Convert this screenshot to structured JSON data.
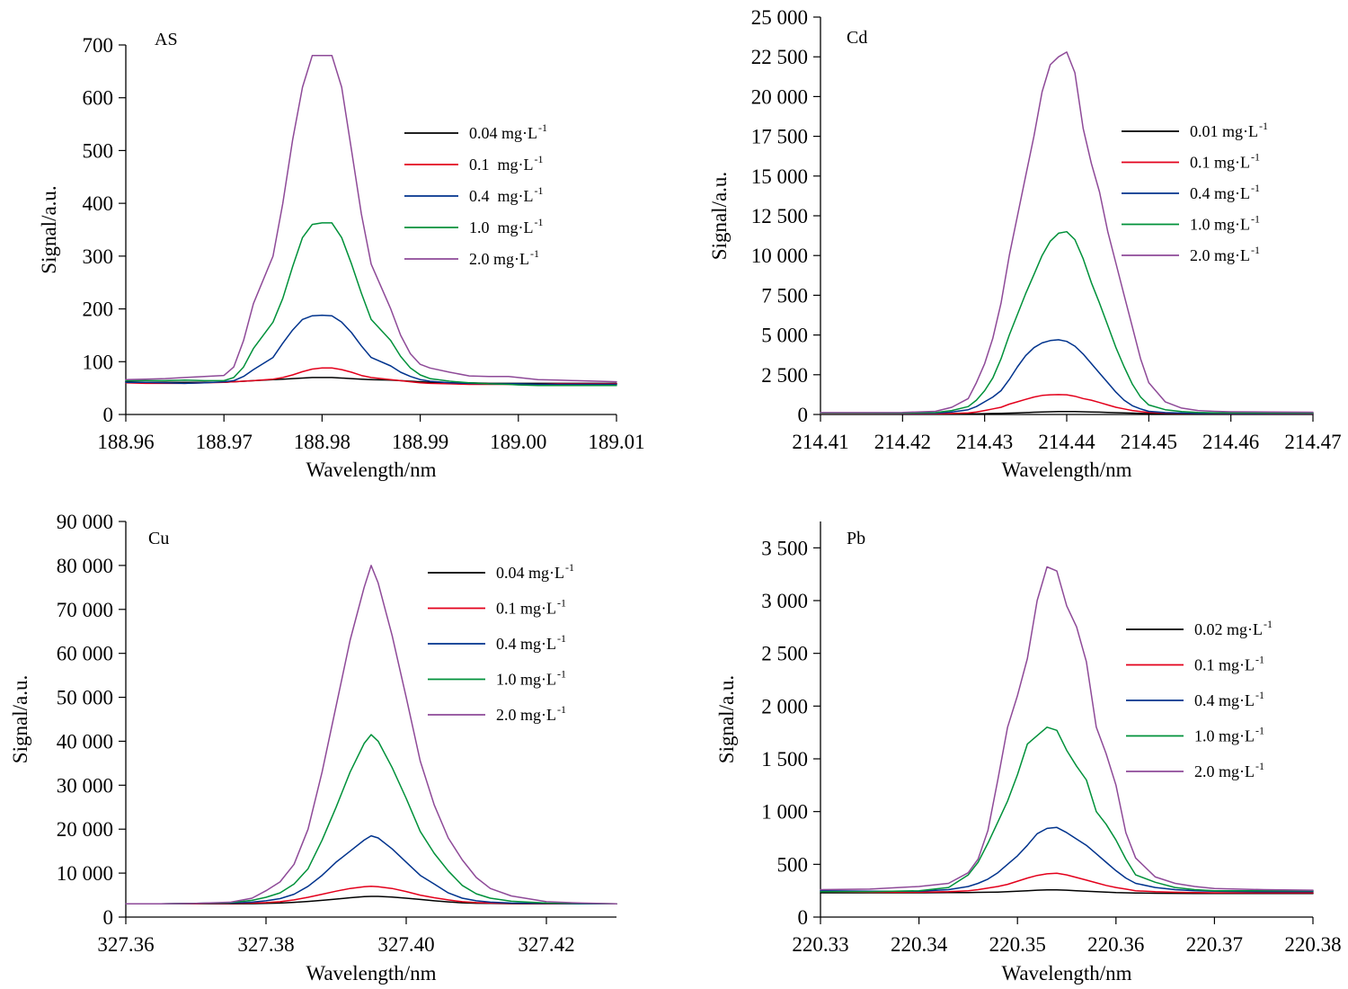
{
  "colors": {
    "black": "#000000",
    "red": "#e3001b",
    "blue": "#00338d",
    "green": "#00913a",
    "purple": "#8e4a98"
  },
  "chart_data": [
    {
      "type": "line",
      "panel_label": "AS",
      "xlabel": "Wavelength/nm",
      "ylabel": "Signal/a.u.",
      "xlim": [
        188.96,
        189.01
      ],
      "ylim": [
        0,
        700
      ],
      "xticks": [
        188.96,
        188.97,
        188.98,
        188.99,
        189.0,
        189.01
      ],
      "xtick_labels": [
        "188.96",
        "188.97",
        "188.98",
        "188.99",
        "189.00",
        "189.01"
      ],
      "yticks": [
        0,
        100,
        200,
        300,
        400,
        500,
        600,
        700
      ],
      "ytick_labels": [
        "0",
        "100",
        "200",
        "300",
        "400",
        "500",
        "600",
        "700"
      ],
      "legend_position": "top-right",
      "x": [
        188.96,
        188.962,
        188.964,
        188.966,
        188.968,
        188.97,
        188.971,
        188.972,
        188.973,
        188.975,
        188.976,
        188.977,
        188.978,
        188.979,
        188.98,
        188.981,
        188.982,
        188.983,
        188.984,
        188.985,
        188.987,
        188.988,
        188.989,
        188.99,
        188.991,
        188.993,
        188.995,
        188.997,
        188.999,
        189.0,
        189.002,
        189.004,
        189.006,
        189.008,
        189.01
      ],
      "series": [
        {
          "name": "0.04 mg·L",
          "sup": "-1",
          "color": "#000000",
          "values": [
            62,
            61,
            61,
            61,
            61,
            61,
            62,
            63,
            64,
            66,
            67,
            68,
            69,
            70,
            70,
            70,
            69,
            68,
            67,
            66,
            65,
            64,
            63,
            62,
            61,
            60,
            60,
            59,
            59,
            59,
            59,
            59,
            59,
            59,
            59
          ]
        },
        {
          "name": "0.1  mg·L",
          "sup": "-1",
          "color": "#e3001b",
          "values": [
            60,
            59,
            59,
            59,
            60,
            61,
            62,
            63,
            64,
            67,
            70,
            75,
            81,
            86,
            88,
            88,
            85,
            80,
            74,
            70,
            66,
            64,
            62,
            60,
            59,
            58,
            57,
            57,
            57,
            57,
            57,
            58,
            58,
            58,
            58
          ]
        },
        {
          "name": "0.4  mg·L",
          "sup": "-1",
          "color": "#00338d",
          "values": [
            61,
            61,
            60,
            59,
            60,
            62,
            64,
            72,
            85,
            108,
            135,
            160,
            180,
            187,
            188,
            187,
            175,
            155,
            130,
            108,
            92,
            80,
            72,
            66,
            63,
            60,
            59,
            58,
            58,
            58,
            57,
            57,
            57,
            57,
            57
          ]
        },
        {
          "name": "1.0  mg·L",
          "sup": "-1",
          "color": "#00913a",
          "values": [
            64,
            64,
            64,
            65,
            64,
            64,
            70,
            90,
            125,
            175,
            220,
            280,
            335,
            360,
            363,
            363,
            335,
            285,
            230,
            180,
            140,
            110,
            88,
            75,
            68,
            63,
            60,
            58,
            57,
            56,
            55,
            55,
            55,
            55,
            55
          ]
        },
        {
          "name": "2.0 mg·L",
          "sup": "-1",
          "color": "#8e4a98",
          "values": [
            66,
            67,
            68,
            70,
            72,
            74,
            90,
            140,
            210,
            300,
            400,
            520,
            620,
            680,
            680,
            680,
            620,
            500,
            380,
            285,
            200,
            150,
            115,
            95,
            88,
            80,
            73,
            72,
            72,
            70,
            66,
            65,
            64,
            63,
            62
          ]
        }
      ]
    },
    {
      "type": "line",
      "panel_label": "Cd",
      "xlabel": "Wavelength/nm",
      "ylabel": "Signal/a.u.",
      "xlim": [
        214.41,
        214.47
      ],
      "ylim": [
        0,
        25000
      ],
      "xticks": [
        214.41,
        214.42,
        214.43,
        214.44,
        214.45,
        214.46,
        214.47
      ],
      "xtick_labels": [
        "214.41",
        "214.42",
        "214.43",
        "214.44",
        "214.45",
        "214.46",
        "214.47"
      ],
      "yticks": [
        0,
        2500,
        5000,
        7500,
        10000,
        12500,
        15000,
        17500,
        20000,
        22500,
        25000
      ],
      "ytick_labels": [
        "0",
        "2 500",
        "5 000",
        "7 500",
        "10 000",
        "12 500",
        "15 000",
        "17 500",
        "20 000",
        "22 500",
        "25 000"
      ],
      "legend_position": "top-right",
      "x": [
        214.41,
        214.415,
        214.42,
        214.424,
        214.426,
        214.428,
        214.429,
        214.43,
        214.431,
        214.432,
        214.433,
        214.434,
        214.435,
        214.436,
        214.437,
        214.438,
        214.439,
        214.44,
        214.441,
        214.442,
        214.443,
        214.444,
        214.445,
        214.446,
        214.447,
        214.448,
        214.449,
        214.45,
        214.452,
        214.454,
        214.456,
        214.458,
        214.46,
        214.465,
        214.47
      ],
      "series": [
        {
          "name": "0.01 mg·L",
          "sup": "-1",
          "color": "#000000",
          "values": [
            30,
            30,
            30,
            30,
            32,
            35,
            40,
            50,
            60,
            70,
            85,
            100,
            120,
            140,
            155,
            170,
            180,
            185,
            180,
            170,
            160,
            145,
            130,
            115,
            100,
            85,
            70,
            55,
            45,
            40,
            35,
            32,
            30,
            30,
            30
          ]
        },
        {
          "name": "0.1 mg·L",
          "sup": "-1",
          "color": "#e3001b",
          "values": [
            40,
            40,
            40,
            45,
            60,
            100,
            150,
            250,
            350,
            450,
            650,
            800,
            950,
            1100,
            1200,
            1240,
            1250,
            1240,
            1150,
            1000,
            900,
            750,
            600,
            450,
            350,
            250,
            180,
            130,
            90,
            70,
            60,
            55,
            50,
            45,
            45
          ]
        },
        {
          "name": "0.4 mg·L",
          "sup": "-1",
          "color": "#00338d",
          "values": [
            60,
            60,
            60,
            80,
            150,
            300,
            500,
            800,
            1100,
            1500,
            2200,
            3000,
            3700,
            4200,
            4500,
            4650,
            4700,
            4600,
            4300,
            3800,
            3200,
            2600,
            2000,
            1400,
            900,
            550,
            350,
            200,
            120,
            90,
            75,
            70,
            65,
            62,
            60
          ]
        },
        {
          "name": "1.0 mg·L",
          "sup": "-1",
          "color": "#00913a",
          "values": [
            80,
            80,
            85,
            120,
            250,
            500,
            900,
            1500,
            2300,
            3500,
            5000,
            6300,
            7600,
            8800,
            10000,
            10900,
            11400,
            11500,
            11000,
            9800,
            8300,
            7000,
            5600,
            4200,
            3000,
            1900,
            1100,
            600,
            300,
            180,
            130,
            110,
            100,
            95,
            90
          ]
        },
        {
          "name": "2.0 mg·L",
          "sup": "-1",
          "color": "#8e4a98",
          "values": [
            120,
            120,
            130,
            200,
            450,
            1000,
            2000,
            3200,
            4800,
            7000,
            10000,
            12500,
            15000,
            17500,
            20300,
            22000,
            22500,
            22800,
            21500,
            18000,
            15800,
            14000,
            11500,
            9500,
            7500,
            5500,
            3500,
            2000,
            800,
            400,
            250,
            200,
            170,
            150,
            140
          ]
        }
      ]
    },
    {
      "type": "line",
      "panel_label": "Cu",
      "xlabel": "Wavelength/nm",
      "ylabel": "Signal/a.u.",
      "xlim": [
        327.36,
        327.43
      ],
      "ylim": [
        0,
        90000
      ],
      "xticks": [
        327.36,
        327.38,
        327.4,
        327.42
      ],
      "xtick_labels": [
        "327.36",
        "327.38",
        "327.40",
        "327.42"
      ],
      "yticks": [
        0,
        10000,
        20000,
        30000,
        40000,
        50000,
        60000,
        70000,
        80000,
        90000
      ],
      "ytick_labels": [
        "0",
        "10 000",
        "20 000",
        "30 000",
        "40 000",
        "50 000",
        "60 000",
        "70 000",
        "80 000",
        "90 000"
      ],
      "legend_position": "top-right",
      "x": [
        327.36,
        327.365,
        327.37,
        327.375,
        327.378,
        327.38,
        327.382,
        327.384,
        327.386,
        327.388,
        327.39,
        327.392,
        327.394,
        327.395,
        327.396,
        327.398,
        327.4,
        327.402,
        327.404,
        327.406,
        327.408,
        327.41,
        327.412,
        327.415,
        327.42,
        327.425,
        327.43
      ],
      "series": [
        {
          "name": "0.04 mg·L",
          "sup": "-1",
          "color": "#000000",
          "values": [
            3000,
            3000,
            3000,
            3000,
            3050,
            3100,
            3200,
            3350,
            3550,
            3800,
            4100,
            4400,
            4650,
            4700,
            4700,
            4550,
            4300,
            4000,
            3700,
            3450,
            3250,
            3150,
            3100,
            3050,
            3000,
            3000,
            3000
          ]
        },
        {
          "name": "0.1 mg·L",
          "sup": "-1",
          "color": "#e3001b",
          "values": [
            3000,
            3000,
            3050,
            3100,
            3200,
            3300,
            3500,
            3900,
            4500,
            5200,
            5900,
            6500,
            6900,
            7000,
            6900,
            6500,
            5800,
            5000,
            4400,
            3900,
            3500,
            3300,
            3200,
            3100,
            3050,
            3000,
            3000
          ]
        },
        {
          "name": "0.4 mg·L",
          "sup": "-1",
          "color": "#00338d",
          "values": [
            3000,
            3000,
            3100,
            3200,
            3400,
            3700,
            4200,
            5200,
            7000,
            9500,
            12500,
            15000,
            17500,
            18500,
            18000,
            15500,
            12500,
            9500,
            7500,
            5500,
            4300,
            3700,
            3400,
            3200,
            3100,
            3000,
            3000
          ]
        },
        {
          "name": "1.0 mg·L",
          "sup": "-1",
          "color": "#00913a",
          "values": [
            3000,
            3000,
            3100,
            3300,
            3800,
            4500,
            5500,
            7500,
            11000,
            17500,
            25000,
            33000,
            39500,
            41500,
            40000,
            34000,
            27000,
            19500,
            14500,
            10500,
            7200,
            5300,
            4300,
            3600,
            3200,
            3100,
            3000
          ]
        },
        {
          "name": "2.0 mg·L",
          "sup": "-1",
          "color": "#8e4a98",
          "values": [
            3000,
            3000,
            3100,
            3400,
            4300,
            6000,
            8000,
            12000,
            20000,
            33000,
            48000,
            63000,
            75000,
            80000,
            76000,
            64000,
            50000,
            35500,
            25500,
            18000,
            13000,
            9000,
            6500,
            4800,
            3500,
            3200,
            3000
          ]
        }
      ]
    },
    {
      "type": "line",
      "panel_label": "Pb",
      "xlabel": "Wavelength/nm",
      "ylabel": "Signal/a.u.",
      "xlim": [
        220.33,
        220.38
      ],
      "ylim": [
        0,
        3750
      ],
      "xticks": [
        220.33,
        220.34,
        220.35,
        220.36,
        220.37,
        220.38
      ],
      "xtick_labels": [
        "220.33",
        "220.34",
        "220.35",
        "220.36",
        "220.37",
        "220.38"
      ],
      "yticks": [
        0,
        500,
        1000,
        1500,
        2000,
        2500,
        3000,
        3500
      ],
      "ytick_labels": [
        "0",
        "500",
        "1 000",
        "1 500",
        "2 000",
        "2 500",
        "3 000",
        "3 500"
      ],
      "legend_position": "right",
      "x": [
        220.33,
        220.335,
        220.34,
        220.343,
        220.345,
        220.346,
        220.347,
        220.348,
        220.349,
        220.35,
        220.351,
        220.352,
        220.353,
        220.354,
        220.355,
        220.356,
        220.357,
        220.358,
        220.359,
        220.36,
        220.361,
        220.362,
        220.364,
        220.366,
        220.368,
        220.37,
        220.375,
        220.38
      ],
      "series": [
        {
          "name": "0.02 mg·L",
          "sup": "-1",
          "color": "#000000",
          "values": [
            230,
            230,
            230,
            232,
            233,
            234,
            235,
            237,
            240,
            245,
            250,
            255,
            258,
            258,
            255,
            250,
            245,
            240,
            236,
            232,
            230,
            228,
            226,
            225,
            224,
            224,
            224,
            224
          ]
        },
        {
          "name": "0.1 mg·L",
          "sup": "-1",
          "color": "#e3001b",
          "values": [
            240,
            235,
            235,
            240,
            250,
            260,
            275,
            290,
            310,
            340,
            370,
            395,
            410,
            415,
            400,
            375,
            350,
            325,
            300,
            280,
            265,
            250,
            240,
            235,
            232,
            230,
            230,
            230
          ]
        },
        {
          "name": "0.4 mg·L",
          "sup": "-1",
          "color": "#00338d",
          "values": [
            250,
            245,
            245,
            260,
            290,
            320,
            360,
            420,
            500,
            580,
            680,
            790,
            840,
            850,
            800,
            740,
            680,
            600,
            520,
            440,
            370,
            320,
            280,
            260,
            250,
            245,
            240,
            240
          ]
        },
        {
          "name": "1.0 mg·L",
          "sup": "-1",
          "color": "#00913a",
          "values": [
            240,
            240,
            250,
            280,
            400,
            520,
            700,
            900,
            1100,
            1350,
            1640,
            1720,
            1800,
            1770,
            1580,
            1430,
            1300,
            1000,
            880,
            730,
            550,
            400,
            330,
            280,
            260,
            250,
            250,
            250
          ]
        },
        {
          "name": "2.0 mg·L",
          "sup": "-1",
          "color": "#8e4a98",
          "values": [
            260,
            265,
            290,
            320,
            420,
            550,
            820,
            1300,
            1800,
            2100,
            2450,
            3000,
            3320,
            3280,
            2950,
            2750,
            2420,
            1800,
            1550,
            1250,
            800,
            560,
            380,
            320,
            290,
            270,
            260,
            255
          ]
        }
      ]
    }
  ]
}
